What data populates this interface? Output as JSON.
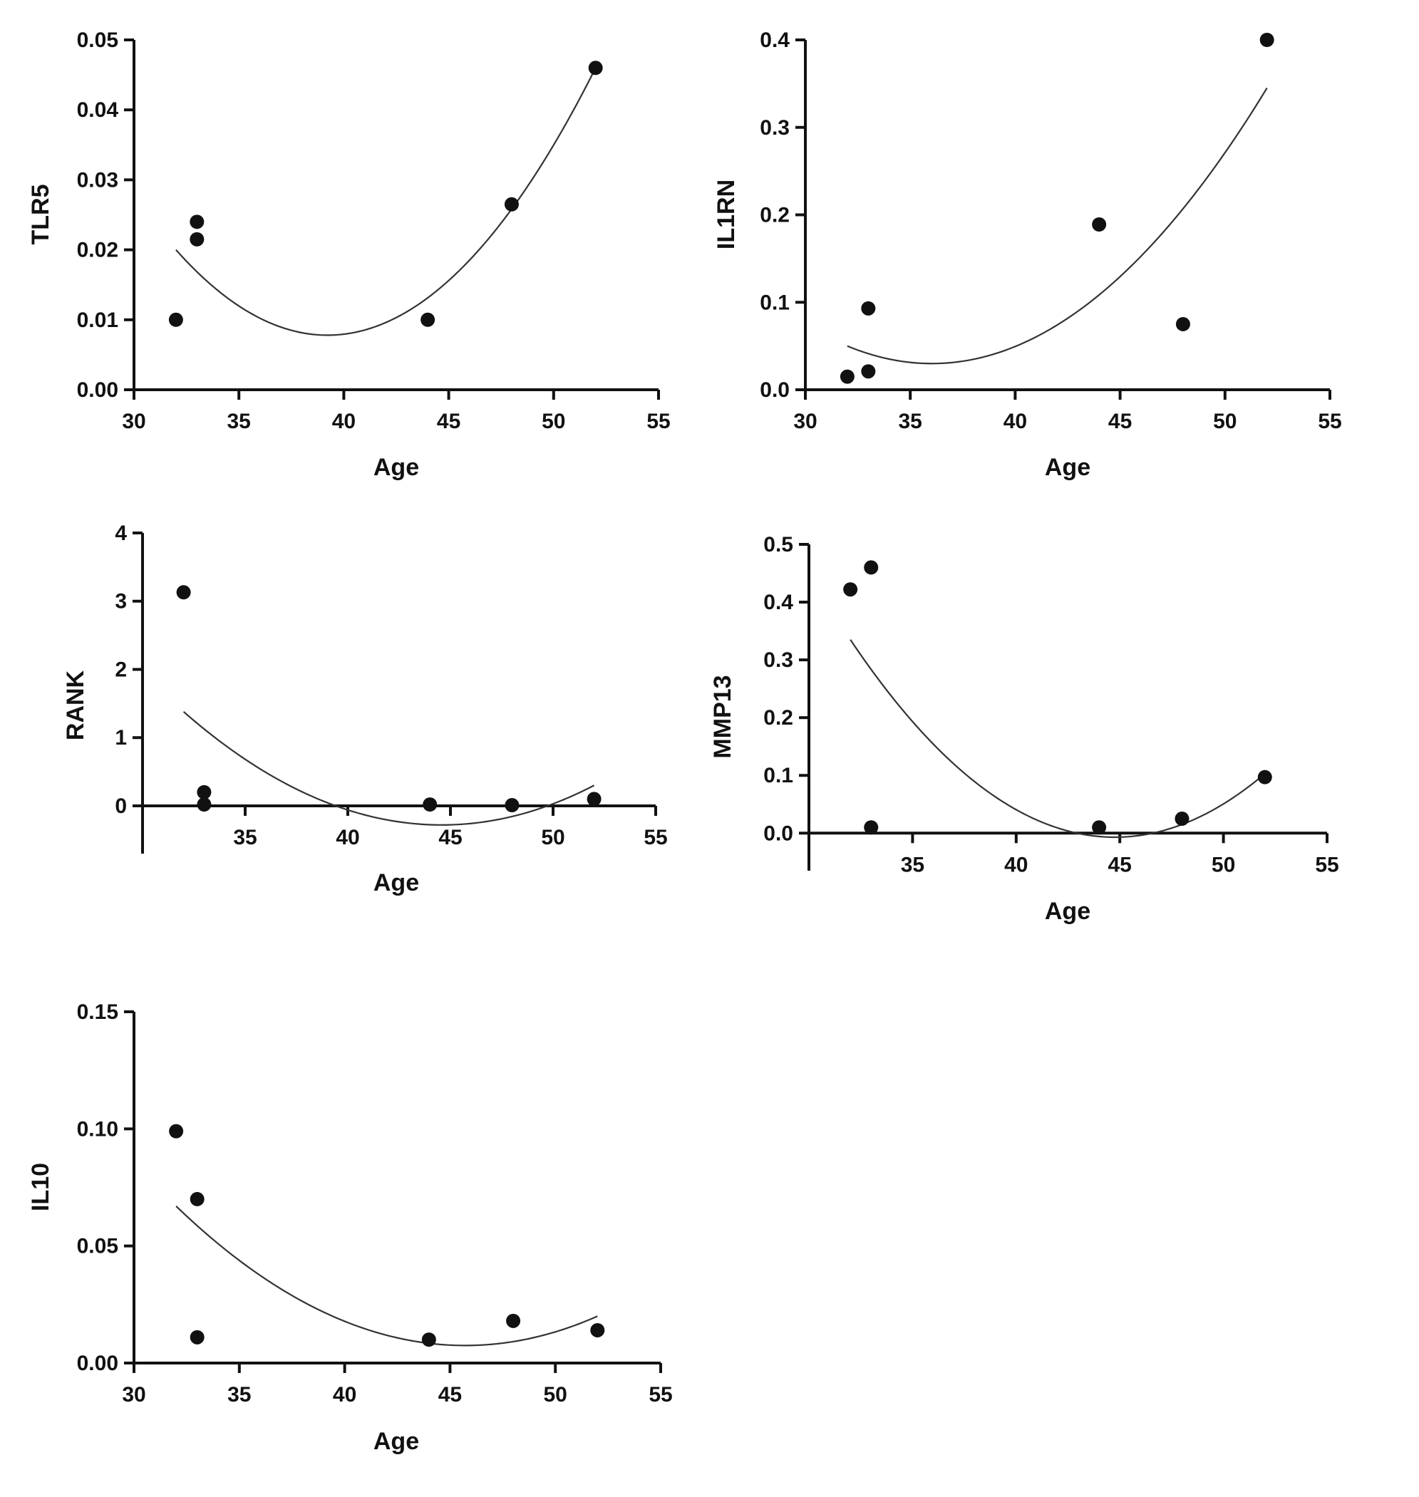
{
  "figure": {
    "colors": {
      "axis": "#111111",
      "point": "#111111",
      "curve": "#333333",
      "background": "#ffffff"
    }
  },
  "chart_data": [
    {
      "id": "tlr5",
      "type": "scatter",
      "title": "",
      "xlabel": "Age",
      "ylabel": "TLR5",
      "xlim": [
        30,
        55
      ],
      "ylim": [
        0,
        0.05
      ],
      "x_ticks": [
        30,
        35,
        40,
        45,
        50,
        55
      ],
      "y_ticks": [
        0,
        0.01,
        0.02,
        0.03,
        0.04,
        0.05
      ],
      "x_tick_labels": [
        "30",
        "35",
        "40",
        "45",
        "50",
        "55"
      ],
      "y_tick_labels": [
        "0.00",
        "0.01",
        "0.02",
        "0.03",
        "0.04",
        "0.05"
      ],
      "x_axis_at": 0,
      "points": [
        {
          "x": 32,
          "y": 0.01
        },
        {
          "x": 33,
          "y": 0.024
        },
        {
          "x": 33,
          "y": 0.0215
        },
        {
          "x": 44,
          "y": 0.01
        },
        {
          "x": 48,
          "y": 0.0265
        },
        {
          "x": 52,
          "y": 0.046
        }
      ],
      "fit": {
        "type": "quadratic",
        "x_range": [
          32,
          52
        ],
        "through": [
          [
            32,
            0.02
          ],
          [
            39.3,
            0.0078
          ],
          [
            52,
            0.046
          ]
        ]
      }
    },
    {
      "id": "il1rn",
      "type": "scatter",
      "title": "",
      "xlabel": "Age",
      "ylabel": "IL1RN",
      "xlim": [
        30,
        55
      ],
      "ylim": [
        0,
        0.4
      ],
      "x_ticks": [
        30,
        35,
        40,
        45,
        50,
        55
      ],
      "y_ticks": [
        0,
        0.1,
        0.2,
        0.3,
        0.4
      ],
      "x_tick_labels": [
        "30",
        "35",
        "40",
        "45",
        "50",
        "55"
      ],
      "y_tick_labels": [
        "0.0",
        "0.1",
        "0.2",
        "0.3",
        "0.4"
      ],
      "x_axis_at": 0,
      "points": [
        {
          "x": 32,
          "y": 0.015
        },
        {
          "x": 33,
          "y": 0.093
        },
        {
          "x": 33,
          "y": 0.021
        },
        {
          "x": 44,
          "y": 0.189
        },
        {
          "x": 48,
          "y": 0.075
        },
        {
          "x": 52,
          "y": 0.4
        }
      ],
      "fit": {
        "type": "quadratic",
        "x_range": [
          32,
          52
        ],
        "through": [
          [
            32,
            0.05
          ],
          [
            36.2,
            0.03
          ],
          [
            52,
            0.345
          ]
        ]
      }
    },
    {
      "id": "rank",
      "type": "scatter",
      "title": "",
      "xlabel": "Age",
      "ylabel": "RANK",
      "xlim": [
        30,
        55
      ],
      "ylim": [
        -0.7,
        4
      ],
      "x_ticks": [
        35,
        40,
        45,
        50,
        55
      ],
      "y_ticks": [
        0,
        1,
        2,
        3,
        4
      ],
      "x_tick_labels": [
        "35",
        "40",
        "45",
        "50",
        "55"
      ],
      "y_tick_labels": [
        "0",
        "1",
        "2",
        "3",
        "4"
      ],
      "x_axis_at": 0,
      "points": [
        {
          "x": 32,
          "y": 3.13
        },
        {
          "x": 33,
          "y": 0.2
        },
        {
          "x": 33,
          "y": 0.02
        },
        {
          "x": 44,
          "y": 0.02
        },
        {
          "x": 48,
          "y": 0.01
        },
        {
          "x": 52,
          "y": 0.1
        }
      ],
      "fit": {
        "type": "quadratic",
        "x_range": [
          32,
          52
        ],
        "through": [
          [
            32,
            1.38
          ],
          [
            44.5,
            -0.28
          ],
          [
            52,
            0.3
          ]
        ]
      }
    },
    {
      "id": "mmp13",
      "type": "scatter",
      "title": "",
      "xlabel": "Age",
      "ylabel": "MMP13",
      "xlim": [
        30,
        55
      ],
      "ylim": [
        -0.065,
        0.5
      ],
      "x_ticks": [
        35,
        40,
        45,
        50,
        55
      ],
      "y_ticks": [
        0,
        0.1,
        0.2,
        0.3,
        0.4,
        0.5
      ],
      "x_tick_labels": [
        "35",
        "40",
        "45",
        "50",
        "55"
      ],
      "y_tick_labels": [
        "0.0",
        "0.1",
        "0.2",
        "0.3",
        "0.4",
        "0.5"
      ],
      "x_axis_at": 0,
      "points": [
        {
          "x": 32,
          "y": 0.422
        },
        {
          "x": 33,
          "y": 0.46
        },
        {
          "x": 33,
          "y": 0.01
        },
        {
          "x": 44,
          "y": 0.01
        },
        {
          "x": 48,
          "y": 0.025
        },
        {
          "x": 52,
          "y": 0.097
        }
      ],
      "fit": {
        "type": "quadratic",
        "x_range": [
          32,
          52
        ],
        "through": [
          [
            32,
            0.335
          ],
          [
            44.8,
            -0.007
          ],
          [
            52,
            0.103
          ]
        ]
      }
    },
    {
      "id": "il10",
      "type": "scatter",
      "title": "",
      "xlabel": "Age",
      "ylabel": "IL10",
      "xlim": [
        30,
        55
      ],
      "ylim": [
        0,
        0.15
      ],
      "x_ticks": [
        30,
        35,
        40,
        45,
        50,
        55
      ],
      "y_ticks": [
        0,
        0.05,
        0.1,
        0.15
      ],
      "x_tick_labels": [
        "30",
        "35",
        "40",
        "45",
        "50",
        "55"
      ],
      "y_tick_labels": [
        "0.00",
        "0.05",
        "0.10",
        "0.15"
      ],
      "x_axis_at": 0,
      "points": [
        {
          "x": 32,
          "y": 0.099
        },
        {
          "x": 33,
          "y": 0.07
        },
        {
          "x": 33,
          "y": 0.011
        },
        {
          "x": 44,
          "y": 0.01
        },
        {
          "x": 48,
          "y": 0.018
        },
        {
          "x": 52,
          "y": 0.014
        }
      ],
      "fit": {
        "type": "quadratic",
        "x_range": [
          32,
          52
        ],
        "through": [
          [
            32,
            0.067
          ],
          [
            45.6,
            0.0075
          ],
          [
            52,
            0.02
          ]
        ]
      }
    }
  ]
}
